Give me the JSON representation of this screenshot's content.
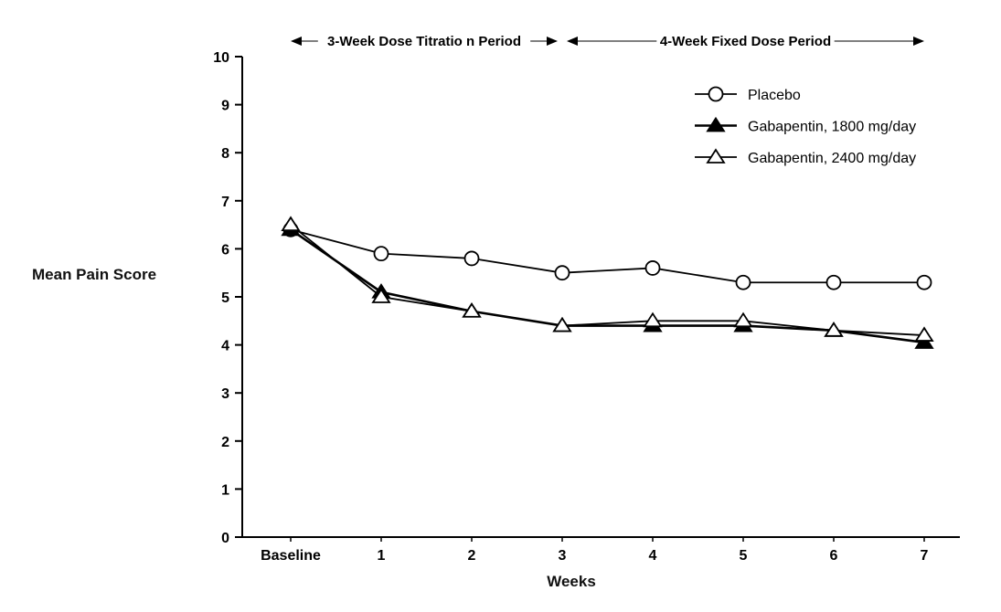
{
  "chart_data": {
    "type": "line",
    "title": "",
    "xlabel": "Weeks",
    "ylabel": "Mean Pain Score",
    "ylim": [
      0,
      10
    ],
    "yticks": [
      0,
      1,
      2,
      3,
      4,
      5,
      6,
      7,
      8,
      9,
      10
    ],
    "categories": [
      "Baseline",
      "1",
      "2",
      "3",
      "4",
      "5",
      "6",
      "7"
    ],
    "series": [
      {
        "name": "Placebo",
        "marker": "circle-open",
        "line_width": 1.8,
        "values": [
          6.4,
          5.9,
          5.8,
          5.5,
          5.6,
          5.3,
          5.3,
          5.3
        ]
      },
      {
        "name": "Gabapentin, 1800 mg/day",
        "marker": "triangle-filled",
        "line_width": 2.6,
        "values": [
          6.4,
          5.1,
          4.7,
          4.4,
          4.4,
          4.4,
          4.3,
          4.05
        ]
      },
      {
        "name": "Gabapentin, 2400 mg/day",
        "marker": "triangle-open",
        "line_width": 1.8,
        "values": [
          6.5,
          5.0,
          4.7,
          4.4,
          4.5,
          4.5,
          4.3,
          4.2
        ]
      }
    ],
    "annotations": [
      {
        "label": "3-Week Dose Titratio n Period",
        "from_category": 0,
        "to_category": 3
      },
      {
        "label": "4-Week Fixed Dose Period",
        "from_category": 3,
        "to_category": 7
      }
    ],
    "legend_position": "top-right",
    "grid": false,
    "colors": {
      "line": "#000000",
      "annotation_line": "#555555",
      "background": "#ffffff"
    }
  }
}
